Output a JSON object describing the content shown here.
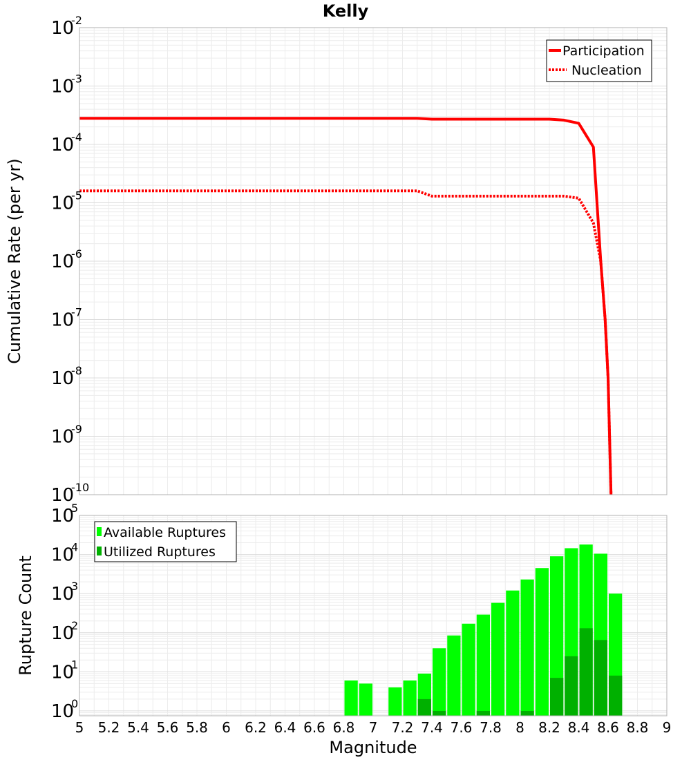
{
  "chart_data": [
    {
      "type": "line",
      "title": "Kelly",
      "ylabel": "Cumulative Rate (per yr)",
      "xlabel": "",
      "xlim": [
        5,
        9
      ],
      "ylim": [
        1e-10,
        0.01
      ],
      "yscale": "log",
      "yticks": [
        {
          "base": "10",
          "exp": "-10",
          "value": 1e-10
        },
        {
          "base": "10",
          "exp": "-9",
          "value": 1e-09
        },
        {
          "base": "10",
          "exp": "-8",
          "value": 1e-08
        },
        {
          "base": "10",
          "exp": "-7",
          "value": 1e-07
        },
        {
          "base": "10",
          "exp": "-6",
          "value": 1e-06
        },
        {
          "base": "10",
          "exp": "-5",
          "value": 1e-05
        },
        {
          "base": "10",
          "exp": "-4",
          "value": 0.0001
        },
        {
          "base": "10",
          "exp": "-3",
          "value": 0.001
        },
        {
          "base": "10",
          "exp": "-2",
          "value": 0.01
        }
      ],
      "legend_position": "top-right",
      "series": [
        {
          "name": "Participation",
          "color": "#ff0000",
          "style": "solid",
          "x": [
            5.0,
            7.3,
            7.4,
            8.2,
            8.3,
            8.4,
            8.5,
            8.55,
            8.58,
            8.6,
            8.62
          ],
          "y": [
            0.00028,
            0.00028,
            0.00027,
            0.00027,
            0.00026,
            0.00023,
            9e-05,
            1e-06,
            1e-07,
            1e-08,
            1e-10
          ]
        },
        {
          "name": "Nucleation",
          "color": "#ff0000",
          "style": "dotted",
          "x": [
            5.0,
            7.3,
            7.4,
            8.3,
            8.4,
            8.5,
            8.55,
            8.58,
            8.6,
            8.62
          ],
          "y": [
            1.6e-05,
            1.6e-05,
            1.3e-05,
            1.3e-05,
            1.2e-05,
            4.5e-06,
            1e-06,
            1e-07,
            1e-08,
            1e-10
          ]
        }
      ]
    },
    {
      "type": "bar",
      "title": "",
      "xlabel": "Magnitude",
      "ylabel": "Rupture Count",
      "xlim": [
        5,
        9
      ],
      "ylim": [
        0.75,
        100000.0
      ],
      "yscale": "log",
      "yticks": [
        {
          "base": "10",
          "exp": "0",
          "value": 1
        },
        {
          "base": "10",
          "exp": "1",
          "value": 10
        },
        {
          "base": "10",
          "exp": "2",
          "value": 100
        },
        {
          "base": "10",
          "exp": "3",
          "value": 1000
        },
        {
          "base": "10",
          "exp": "4",
          "value": 10000
        },
        {
          "base": "10",
          "exp": "5",
          "value": 100000
        }
      ],
      "xticks": [
        "5",
        "5.2",
        "5.4",
        "5.6",
        "5.8",
        "6",
        "6.2",
        "6.4",
        "6.6",
        "6.8",
        "7",
        "7.2",
        "7.4",
        "7.6",
        "7.8",
        "8",
        "8.2",
        "8.4",
        "8.6",
        "8.8",
        "9"
      ],
      "legend_position": "top-left",
      "bin_width": 0.1,
      "series": [
        {
          "name": "Available Ruptures",
          "color": "#00ff00",
          "x": [
            6.85,
            6.95,
            7.15,
            7.25,
            7.35,
            7.45,
            7.55,
            7.65,
            7.75,
            7.85,
            7.95,
            8.05,
            8.15,
            8.25,
            8.35,
            8.45,
            8.55,
            8.65
          ],
          "values": [
            6,
            5,
            4,
            6,
            9,
            40,
            85,
            170,
            290,
            580,
            1200,
            2300,
            4500,
            9000,
            14500,
            18000,
            10500,
            1000
          ]
        },
        {
          "name": "Utilized Ruptures",
          "color": "#00b000",
          "x": [
            7.35,
            7.45,
            7.75,
            8.05,
            8.25,
            8.35,
            8.45,
            8.55,
            8.65
          ],
          "values": [
            2,
            1,
            1,
            1,
            7,
            25,
            130,
            65,
            8
          ]
        }
      ]
    }
  ]
}
